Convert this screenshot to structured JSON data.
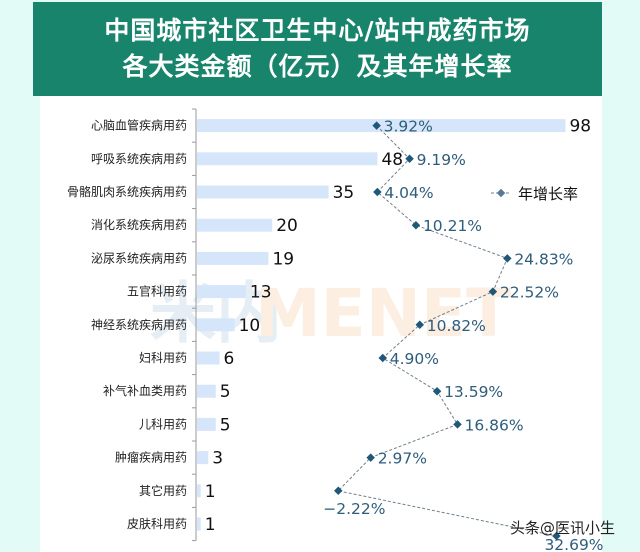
{
  "header": {
    "title_line1": "中国城市社区卫生中心/站中成药市场",
    "title_line2": "各大类金额（亿元）及其年增长率"
  },
  "legend": {
    "label": "年增长率"
  },
  "watermark": {
    "left": "米内",
    "right": "MENET"
  },
  "credit": "头条@医讯小生",
  "colors": {
    "header_bg": "#17846b",
    "page_bg": "#e2fbf6",
    "bar": "#d6e6fa",
    "line": "#6f7f8f",
    "marker": "#1f5878",
    "pct_text": "#2f5d7c"
  },
  "chart_data": {
    "type": "bar",
    "orientation": "horizontal",
    "title": "中国城市社区卫生中心/站中成药市场各大类金额（亿元）及其年增长率",
    "categories": [
      "心脑血管疾病用药",
      "呼吸系统疾病用药",
      "骨骼肌肉系统疾病用药",
      "消化系统疾病用药",
      "泌尿系统疾病用药",
      "五官科用药",
      "神经系统疾病用药",
      "妇科用药",
      "补气补血类用药",
      "儿科用药",
      "肿瘤疾病用药",
      "其它用药",
      "皮肤科用药"
    ],
    "series": [
      {
        "name": "金额（亿元）",
        "type": "bar",
        "values": [
          98,
          48,
          35,
          20,
          19,
          13,
          10,
          6,
          5,
          5,
          3,
          1,
          1
        ]
      },
      {
        "name": "年增长率",
        "type": "line",
        "values": [
          3.92,
          9.19,
          4.04,
          10.21,
          24.83,
          22.52,
          10.82,
          4.9,
          13.59,
          16.86,
          2.97,
          -2.22,
          32.69
        ],
        "labels": [
          "3.92%",
          "9.19%",
          "4.04%",
          "10.21%",
          "24.83%",
          "22.52%",
          "10.82%",
          "4.90%",
          "13.59%",
          "16.86%",
          "2.97%",
          "−2.22%",
          "32.69%"
        ]
      }
    ],
    "xlabel": "",
    "ylabel": "",
    "legend_position": "right",
    "grid": false
  }
}
